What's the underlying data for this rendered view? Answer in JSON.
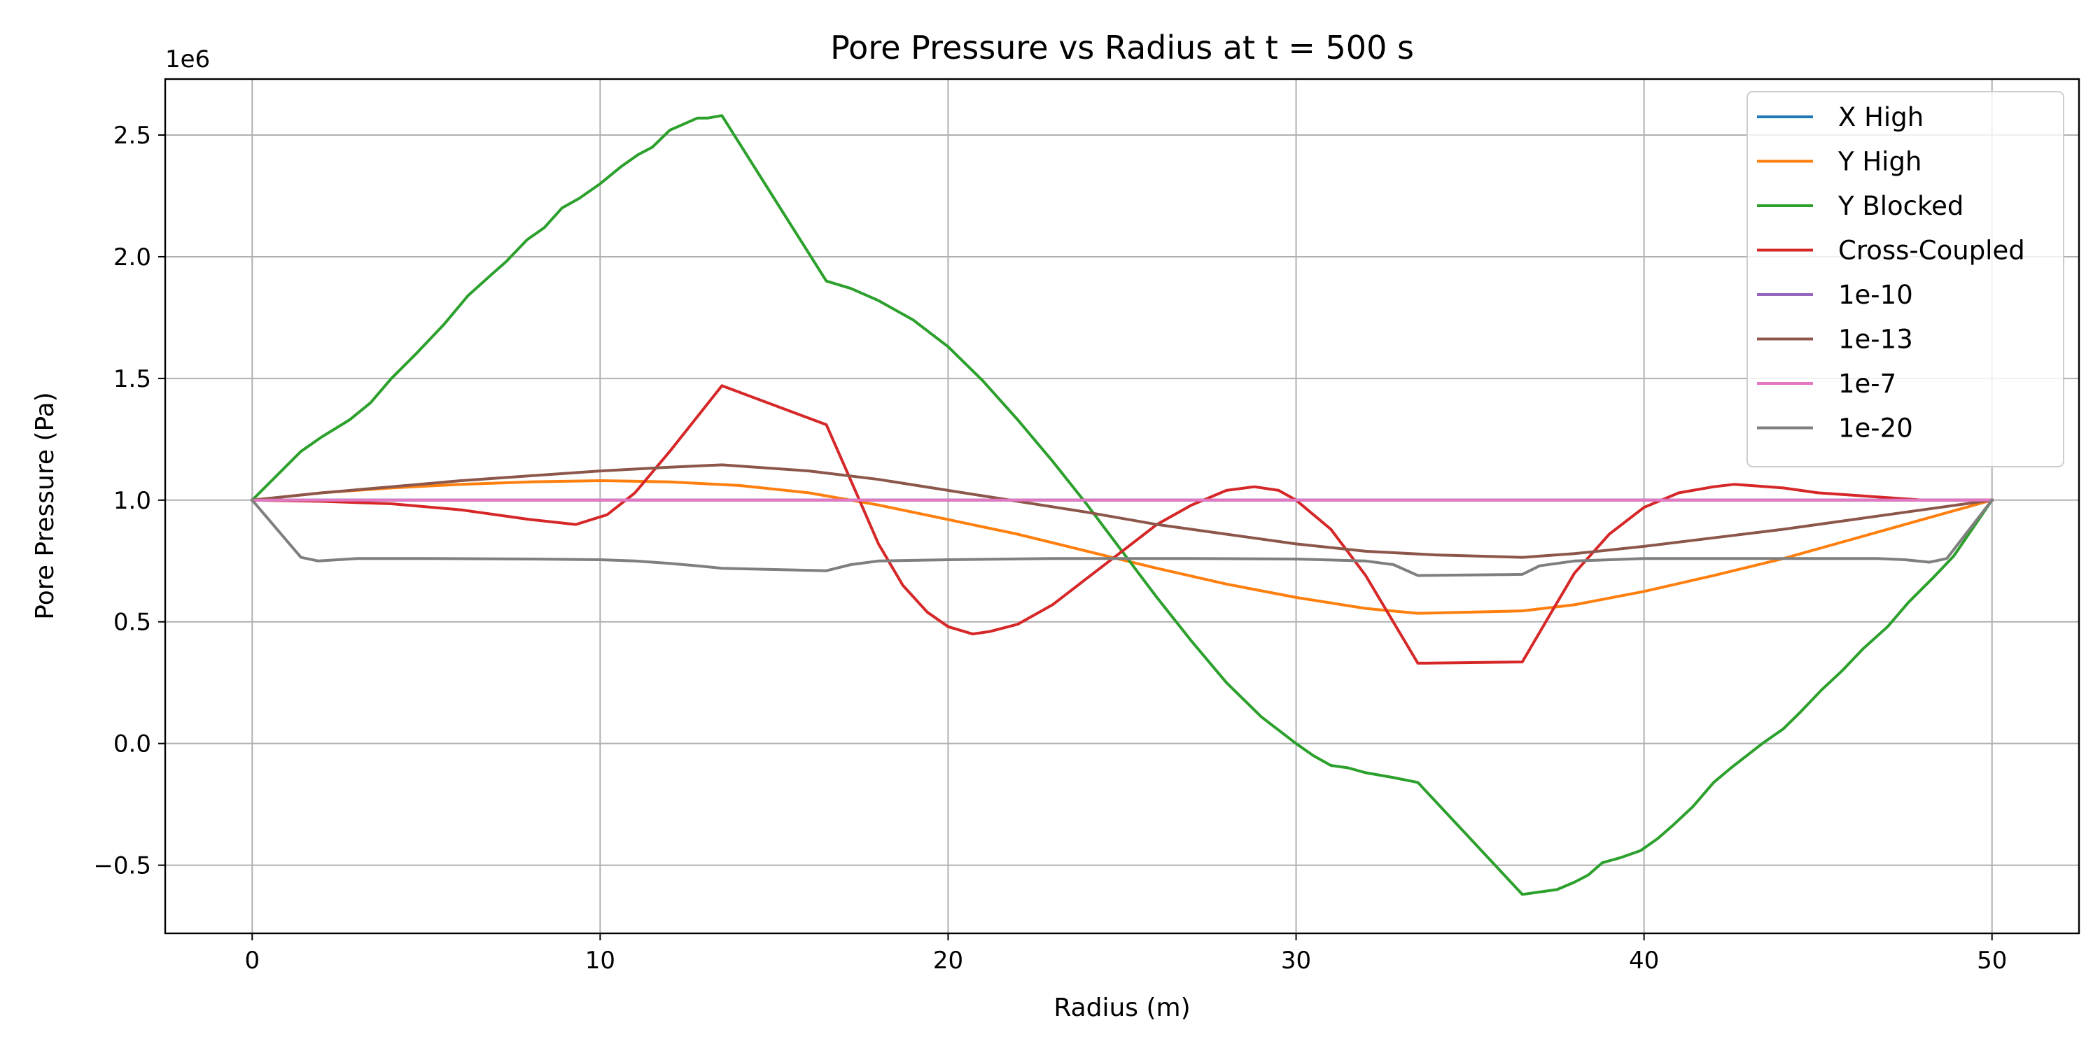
{
  "chart_data": {
    "type": "line",
    "title": "Pore Pressure vs Radius at t = 500 s",
    "xlabel": "Radius (m)",
    "ylabel": "Pore Pressure (Pa)",
    "y_offset_label": "1e6",
    "xlim": [
      -2.5,
      52.5
    ],
    "ylim": [
      -0.78,
      2.73
    ],
    "y_scale_factor": 1000000,
    "grid": true,
    "legend_position": "top-right",
    "x_ticks": [
      0,
      10,
      20,
      30,
      40,
      50
    ],
    "x_tick_labels": [
      "0",
      "10",
      "20",
      "30",
      "40",
      "50"
    ],
    "y_ticks": [
      -0.5,
      0.0,
      0.5,
      1.0,
      1.5,
      2.0,
      2.5
    ],
    "y_tick_labels": [
      "−0.5",
      "0.0",
      "0.5",
      "1.0",
      "1.5",
      "2.0",
      "2.5"
    ],
    "series": [
      {
        "name": "X High",
        "color": "#1f77b4",
        "x": [
          0,
          50
        ],
        "y": [
          1.0,
          1.0
        ]
      },
      {
        "name": "Y High",
        "color": "#ff7f0e",
        "x": [
          0,
          2,
          4,
          6,
          8,
          10,
          12,
          14,
          16,
          18,
          20,
          22,
          24,
          26,
          28,
          30,
          32,
          33.5,
          36.5,
          38,
          40,
          42,
          44,
          46,
          48,
          50
        ],
        "y": [
          1.0,
          1.03,
          1.05,
          1.065,
          1.075,
          1.08,
          1.075,
          1.06,
          1.03,
          0.98,
          0.92,
          0.86,
          0.79,
          0.72,
          0.655,
          0.6,
          0.555,
          0.535,
          0.545,
          0.57,
          0.625,
          0.69,
          0.76,
          0.84,
          0.92,
          1.0
        ]
      },
      {
        "name": "Y Blocked",
        "color": "#2ca02c",
        "x": [
          0,
          0.7,
          1.4,
          2.0,
          2.8,
          3.4,
          4.0,
          4.7,
          5.5,
          6.2,
          6.9,
          7.3,
          7.9,
          8.4,
          8.9,
          9.4,
          10.0,
          10.6,
          11.1,
          11.5,
          12.0,
          12.8,
          13.1,
          13.5,
          15.0,
          16.5,
          17.2,
          18.0,
          19.0,
          20.0,
          21.0,
          22.0,
          23.0,
          24.0,
          25.0,
          26.0,
          27.0,
          28.0,
          29.0,
          30.0,
          30.5,
          31.0,
          31.5,
          32.0,
          32.8,
          33.5,
          35.0,
          36.5,
          37.0,
          37.5,
          38.0,
          38.4,
          38.8,
          39.3,
          39.9,
          40.4,
          40.8,
          41.4,
          42.0,
          42.5,
          43.4,
          44.0,
          44.5,
          45.1,
          45.7,
          46.3,
          47.0,
          47.6,
          48.3,
          48.9,
          50.0
        ],
        "y": [
          1.0,
          1.1,
          1.2,
          1.26,
          1.33,
          1.4,
          1.5,
          1.6,
          1.72,
          1.84,
          1.93,
          1.98,
          2.07,
          2.12,
          2.2,
          2.24,
          2.3,
          2.37,
          2.42,
          2.45,
          2.52,
          2.57,
          2.57,
          2.58,
          2.24,
          1.9,
          1.87,
          1.82,
          1.74,
          1.63,
          1.49,
          1.33,
          1.16,
          0.98,
          0.79,
          0.6,
          0.42,
          0.25,
          0.11,
          0.0,
          -0.05,
          -0.09,
          -0.1,
          -0.12,
          -0.14,
          -0.16,
          -0.39,
          -0.62,
          -0.61,
          -0.6,
          -0.57,
          -0.54,
          -0.49,
          -0.47,
          -0.44,
          -0.39,
          -0.34,
          -0.26,
          -0.16,
          -0.1,
          0.0,
          0.06,
          0.13,
          0.22,
          0.3,
          0.39,
          0.48,
          0.58,
          0.68,
          0.77,
          1.0
        ]
      },
      {
        "name": "Cross-Coupled",
        "color": "#d62728",
        "x": [
          0,
          2,
          4,
          6,
          8,
          9.3,
          10.2,
          11,
          12,
          13.5,
          16.5,
          17.3,
          18,
          18.7,
          19.4,
          20,
          20.7,
          21.2,
          22,
          23,
          24,
          25,
          26,
          27,
          28,
          28.8,
          29.5,
          30,
          31,
          32,
          33.5,
          36.5,
          37.3,
          38,
          39,
          40,
          41,
          42,
          42.6,
          44,
          45,
          46,
          47,
          48,
          50
        ],
        "y": [
          1.0,
          0.995,
          0.985,
          0.96,
          0.92,
          0.9,
          0.94,
          1.03,
          1.2,
          1.47,
          1.31,
          1.05,
          0.82,
          0.65,
          0.54,
          0.48,
          0.45,
          0.46,
          0.49,
          0.57,
          0.68,
          0.79,
          0.9,
          0.98,
          1.04,
          1.055,
          1.04,
          1.0,
          0.88,
          0.69,
          0.33,
          0.335,
          0.53,
          0.7,
          0.86,
          0.97,
          1.03,
          1.055,
          1.065,
          1.05,
          1.03,
          1.02,
          1.01,
          1.0,
          1.0
        ]
      },
      {
        "name": "1e-10",
        "color": "#9467bd",
        "x": [
          0,
          50
        ],
        "y": [
          1.0,
          1.0
        ]
      },
      {
        "name": "1e-13",
        "color": "#8c564b",
        "x": [
          0,
          2,
          4,
          6,
          8,
          10,
          12,
          13.5,
          16,
          18,
          20,
          22,
          24,
          26,
          28,
          30,
          32,
          34,
          36.5,
          38,
          40,
          42,
          44,
          46,
          48,
          50
        ],
        "y": [
          1.0,
          1.03,
          1.055,
          1.08,
          1.1,
          1.12,
          1.135,
          1.145,
          1.12,
          1.085,
          1.04,
          0.995,
          0.95,
          0.9,
          0.86,
          0.82,
          0.79,
          0.775,
          0.765,
          0.78,
          0.81,
          0.845,
          0.88,
          0.92,
          0.96,
          1.0
        ]
      },
      {
        "name": "1e-7",
        "color": "#e377c2",
        "x": [
          0,
          50
        ],
        "y": [
          1.0,
          1.0
        ]
      },
      {
        "name": "1e-20",
        "color": "#7f7f7f",
        "x": [
          0,
          1.4,
          1.9,
          3,
          5,
          8,
          10,
          11,
          12,
          12.8,
          13.5,
          16.5,
          17.2,
          18,
          20,
          23,
          27,
          30,
          32,
          32.8,
          33.5,
          36.5,
          37,
          38,
          40,
          44,
          46.7,
          47.5,
          48.2,
          48.7,
          50
        ],
        "y": [
          1.0,
          0.765,
          0.75,
          0.76,
          0.76,
          0.758,
          0.755,
          0.75,
          0.74,
          0.73,
          0.72,
          0.71,
          0.735,
          0.75,
          0.755,
          0.76,
          0.76,
          0.758,
          0.75,
          0.735,
          0.69,
          0.695,
          0.73,
          0.75,
          0.76,
          0.76,
          0.76,
          0.755,
          0.745,
          0.76,
          1.0
        ]
      }
    ]
  }
}
